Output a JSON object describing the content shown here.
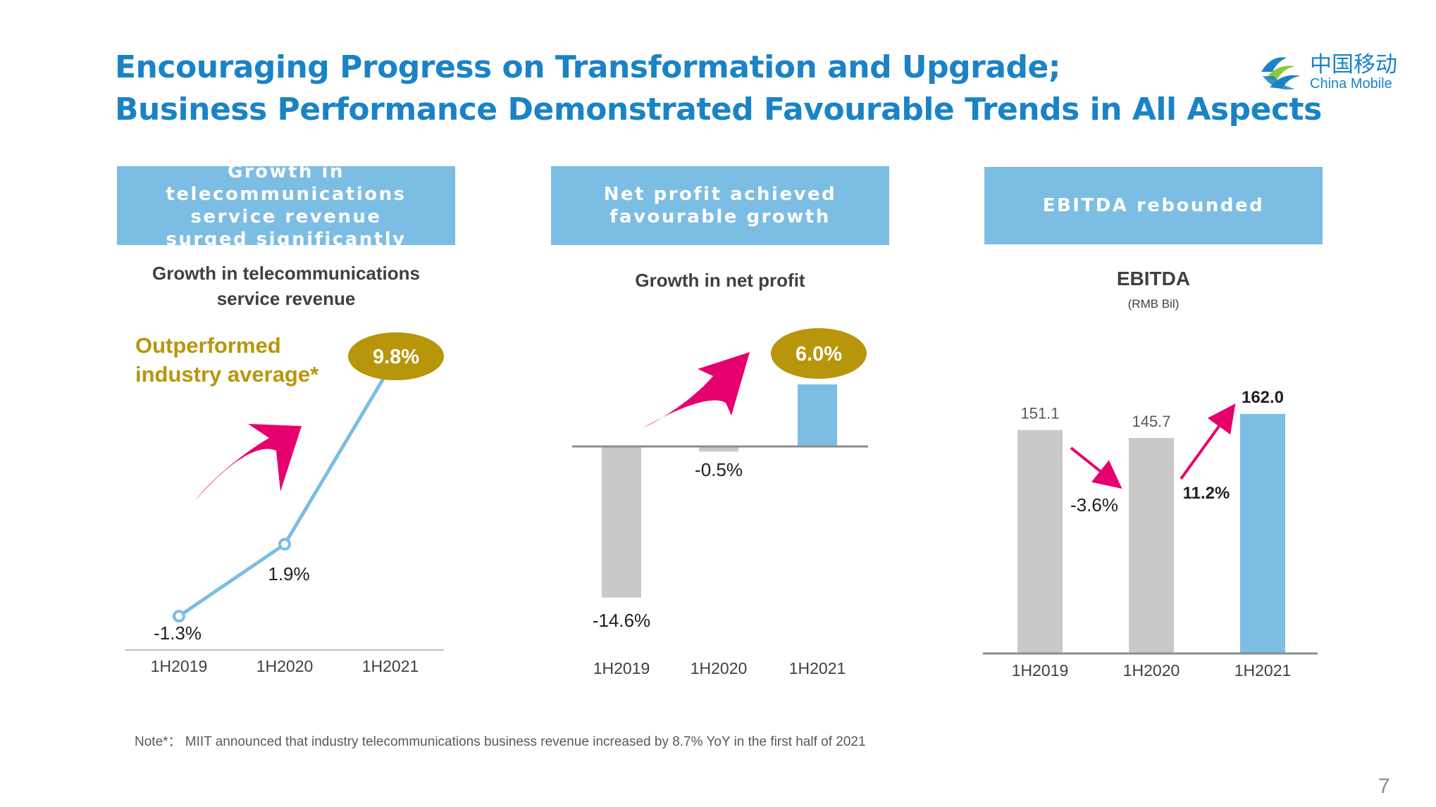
{
  "slide": {
    "title_line1": "Encouraging Progress on Transformation and Upgrade;",
    "title_line2": "Business Performance Demonstrated Favourable Trends in All Aspects",
    "logo_cn": "中国移动",
    "logo_en": "China Mobile",
    "note": "Note*：  MIIT announced that industry telecommunications business revenue increased by 8.7% YoY in the first half of 2021",
    "page_number": "7",
    "colors": {
      "title": "#1a83c6",
      "header_bg": "#7cbde3",
      "bar_grey": "#c9c9c9",
      "bar_blue": "#7cbde3",
      "badge_gold": "#b8960c",
      "arrow_pink": "#e5006e"
    }
  },
  "panels": [
    {
      "header": "Growth in telecommunications\nservice revenue\nsurged significantly",
      "subtitle": "Growth in telecommunications\nservice revenue",
      "highlight": "Outperformed\nindustry average*",
      "badge": "9.8%"
    },
    {
      "header": "Net profit achieved\nfavourable growth",
      "subtitle": "Growth in net profit",
      "badge": "6.0%"
    },
    {
      "header": "EBITDA rebounded",
      "subtitle": "EBITDA",
      "unit": "(RMB Bil)"
    }
  ],
  "chart_data": [
    {
      "type": "line",
      "categories": [
        "1H2019",
        "1H2020",
        "1H2021"
      ],
      "series": [
        {
          "values": [
            -1.3,
            1.9,
            9.8
          ]
        }
      ],
      "data_labels": [
        "-1.3%",
        "1.9%",
        "9.8%"
      ],
      "title": "Growth in telecommunications service revenue"
    },
    {
      "type": "bar",
      "categories": [
        "1H2019",
        "1H2020",
        "1H2021"
      ],
      "series": [
        {
          "values": [
            -14.6,
            -0.5,
            6.0
          ]
        }
      ],
      "data_labels": [
        "-14.6%",
        "-0.5%",
        "6.0%"
      ],
      "title": "Growth in net profit"
    },
    {
      "type": "bar",
      "categories": [
        "1H2019",
        "1H2020",
        "1H2021"
      ],
      "series": [
        {
          "values": [
            151.1,
            145.7,
            162.0
          ]
        }
      ],
      "data_labels": [
        "151.1",
        "145.7",
        "162.0"
      ],
      "changes": [
        "-3.6%",
        "11.2%"
      ],
      "title": "EBITDA",
      "unit": "(RMB Bil)"
    }
  ]
}
